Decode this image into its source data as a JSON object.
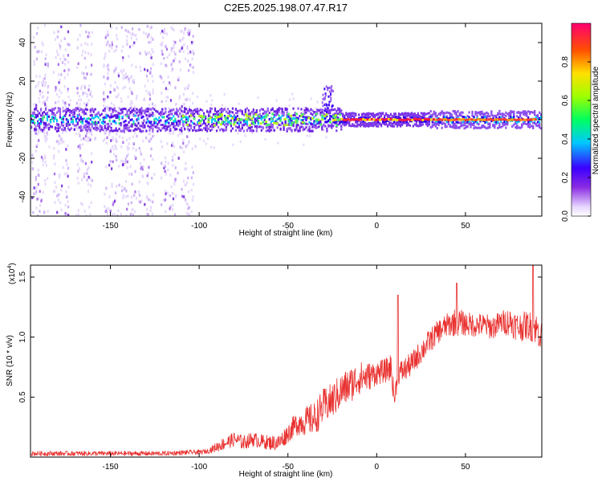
{
  "chart_data": [
    {
      "type": "heatmap",
      "title": "C2E5.2025.198.07.47.R17",
      "xlabel": "Height of straight line (km)",
      "ylabel": "Frequency (Hz)",
      "xlim": [
        -195,
        93
      ],
      "ylim": [
        -50,
        50
      ],
      "x_ticks": [
        -150,
        -100,
        -50,
        0,
        50
      ],
      "x_tick_labels": [
        "-150",
        "-100",
        "-50",
        "0",
        "50"
      ],
      "y_ticks": [
        -40,
        -20,
        0,
        20,
        40
      ],
      "y_tick_labels": [
        "-40",
        "-20",
        "0",
        "20",
        "40"
      ],
      "colorbar": {
        "label": "Normalized spectral amplitude",
        "range": [
          0,
          1
        ],
        "ticks": [
          0,
          0.2,
          0.4,
          0.6,
          0.8
        ],
        "tick_labels": [
          "0.0",
          "0.2",
          "0.4",
          "0.6",
          "0.8"
        ],
        "colormap": "rainbow"
      },
      "features": {
        "band_center_hz": 0,
        "band_half_width_hz": 6,
        "strong_line_range_km": [
          -25,
          90
        ],
        "scatter_columns_km": [
          -190,
          -178,
          -165,
          -150,
          -140,
          -130,
          -118,
          -108
        ],
        "scatter_extent_km": [
          -195,
          -95
        ],
        "bump_at_km": -28,
        "bump_top_hz": 18
      }
    },
    {
      "type": "line",
      "title": "",
      "xlabel": "Height of straight line (km)",
      "ylabel": "SNR (10 * v/v)",
      "scale_label": "(x10",
      "scale_exponent": "4",
      "xlim": [
        -195,
        93
      ],
      "ylim": [
        0,
        1.6
      ],
      "x_ticks": [
        -150,
        -100,
        -50,
        0,
        50
      ],
      "x_tick_labels": [
        "-150",
        "-100",
        "-50",
        "0",
        "50"
      ],
      "y_ticks": [
        0.5,
        1.0,
        1.5
      ],
      "y_tick_labels": [
        "0.5",
        "1.0",
        "1.5"
      ],
      "color": "#e8312f",
      "series": [
        {
          "x": [
            -195,
            -180,
            -160,
            -140,
            -120,
            -105,
            -100,
            -95,
            -88,
            -80,
            -75,
            -70,
            -65,
            -60,
            -55,
            -50,
            -45,
            -40,
            -35,
            -30,
            -25,
            -20,
            -15,
            -10,
            -5,
            0,
            5,
            8,
            10,
            12,
            15,
            20,
            25,
            30,
            35,
            40,
            45,
            50,
            55,
            60,
            65,
            70,
            75,
            80,
            85,
            90,
            93
          ],
          "y": [
            0.03,
            0.03,
            0.03,
            0.03,
            0.03,
            0.04,
            0.04,
            0.05,
            0.1,
            0.15,
            0.12,
            0.15,
            0.13,
            0.12,
            0.12,
            0.2,
            0.28,
            0.3,
            0.32,
            0.42,
            0.47,
            0.55,
            0.6,
            0.66,
            0.67,
            0.7,
            0.72,
            0.75,
            0.48,
            0.7,
            0.72,
            0.78,
            0.88,
            0.97,
            1.05,
            1.1,
            1.13,
            1.11,
            1.1,
            1.1,
            1.08,
            1.12,
            1.13,
            1.08,
            1.1,
            1.07,
            1.0
          ],
          "noise": [
            0.02,
            0.02,
            0.02,
            0.02,
            0.02,
            0.02,
            0.02,
            0.02,
            0.05,
            0.06,
            0.06,
            0.06,
            0.06,
            0.06,
            0.07,
            0.08,
            0.1,
            0.12,
            0.14,
            0.15,
            0.15,
            0.15,
            0.15,
            0.14,
            0.12,
            0.1,
            0.1,
            0.12,
            0.08,
            0.1,
            0.1,
            0.1,
            0.1,
            0.1,
            0.1,
            0.1,
            0.12,
            0.1,
            0.1,
            0.1,
            0.1,
            0.1,
            0.12,
            0.12,
            0.12,
            0.13,
            0.13
          ]
        }
      ],
      "annotations": {
        "spikes": [
          {
            "x": 12,
            "y": 1.35
          },
          {
            "x": 45,
            "y": 1.45
          },
          {
            "x": 88,
            "y": 1.6
          }
        ]
      }
    }
  ]
}
